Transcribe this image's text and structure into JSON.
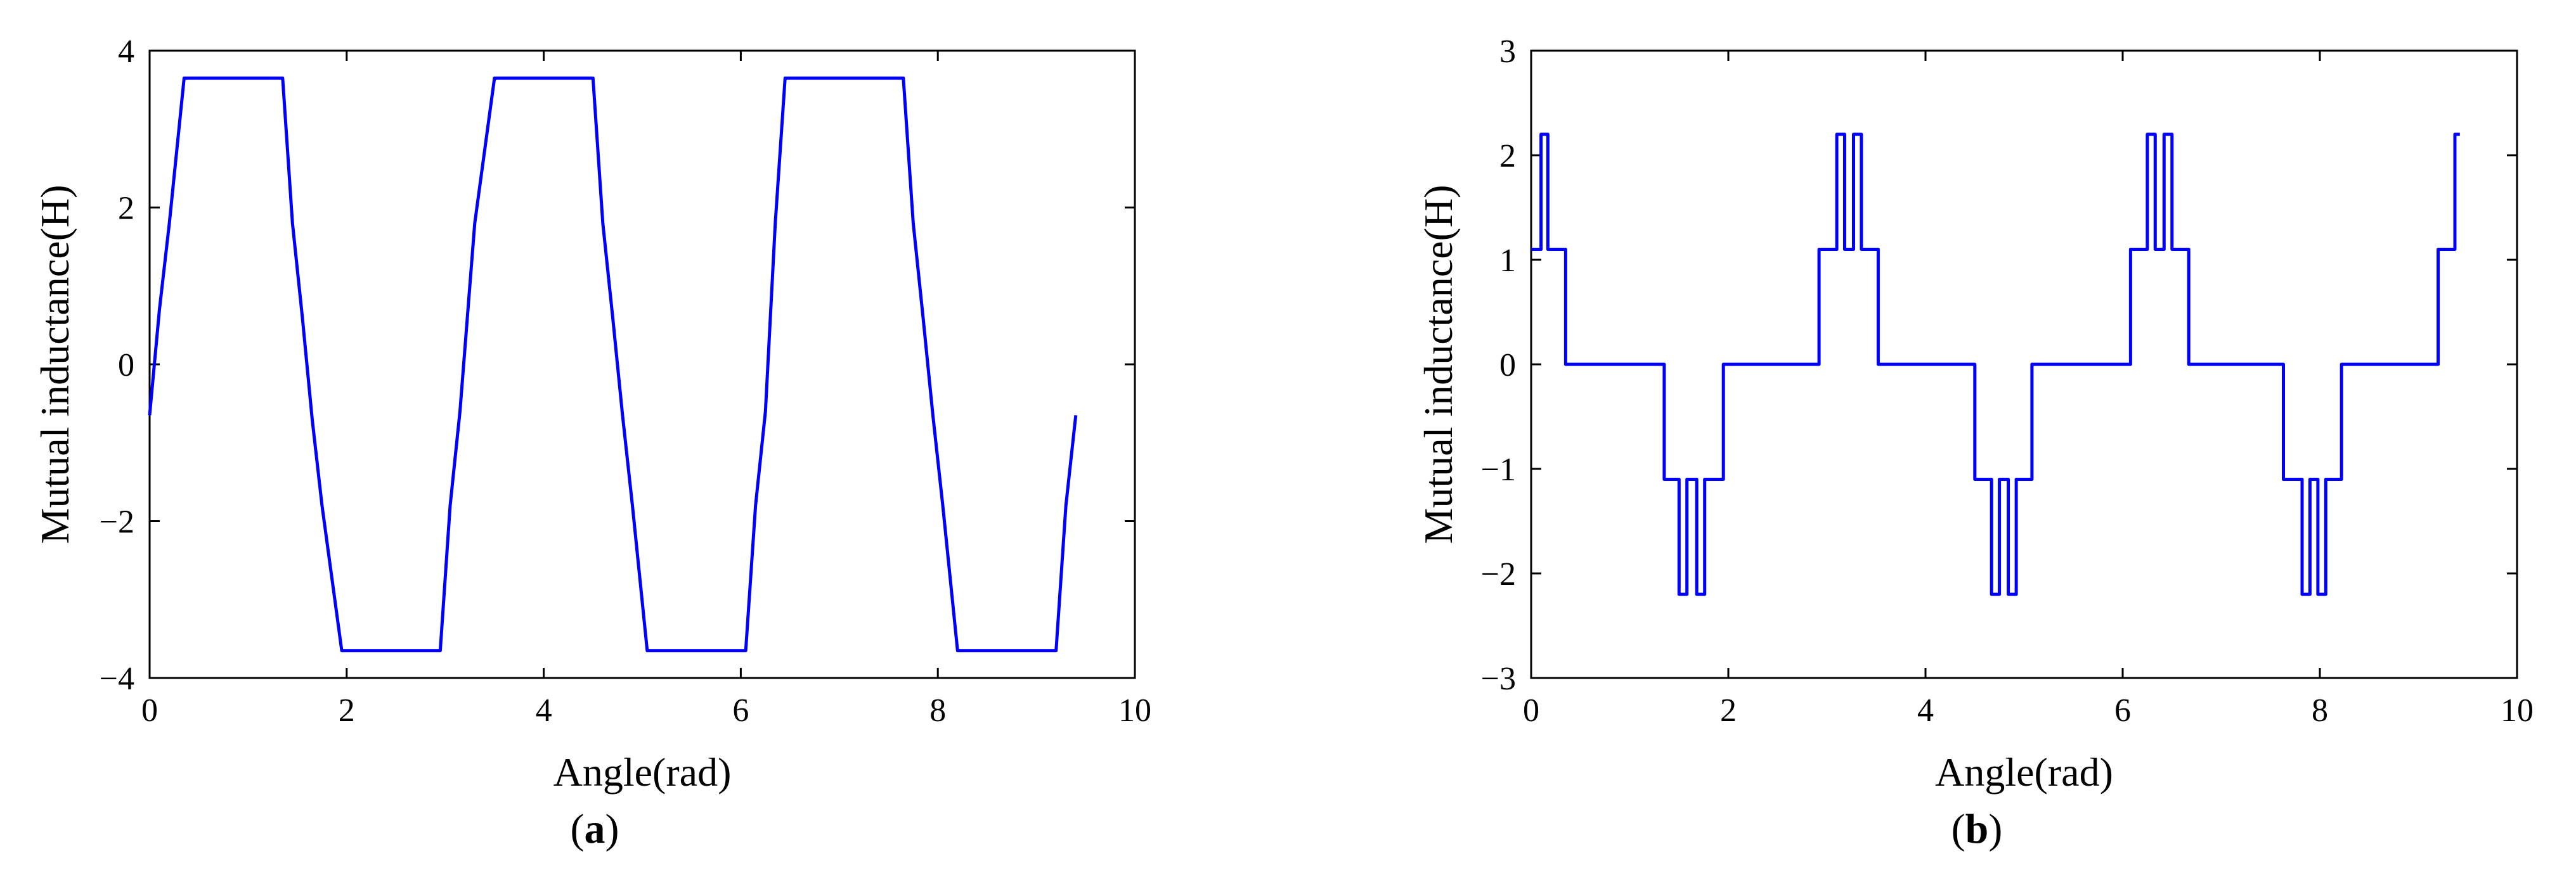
{
  "chart_data": [
    {
      "type": "line",
      "caption": {
        "open": "(",
        "letter": "a",
        "close": ")"
      },
      "title": "",
      "xlabel": "Angle(rad)",
      "ylabel": "Mutual inductance(H)",
      "xlim": [
        0,
        10
      ],
      "ylim": [
        -4,
        4
      ],
      "xticks": [
        0,
        2,
        4,
        6,
        8,
        10
      ],
      "xtick_labels": [
        "0",
        "2",
        "4",
        "6",
        "8",
        "10"
      ],
      "yticks": [
        -4,
        -2,
        0,
        2,
        4
      ],
      "ytick_labels": [
        "−4",
        "−2",
        "0",
        "2",
        "4"
      ],
      "grid": false,
      "series": [
        {
          "color": "#0000ff",
          "x": [
            0,
            0.1,
            0.2,
            0.35,
            1.35,
            1.45,
            1.55,
            1.65,
            1.75,
            1.95,
            2.95,
            3.05,
            3.15,
            3.3,
            3.5,
            4.5,
            4.6,
            4.7,
            4.8,
            4.9,
            5.05,
            6.05,
            6.15,
            6.25,
            6.35,
            6.45,
            6.65,
            7.65,
            7.75,
            7.85,
            7.95,
            8.05,
            8.2,
            9.2,
            9.3,
            9.4
          ],
          "y": [
            -0.65,
            0.7,
            1.8,
            3.65,
            3.65,
            1.8,
            0.6,
            -0.7,
            -1.8,
            -3.65,
            -3.65,
            -1.8,
            -0.6,
            1.8,
            3.65,
            3.65,
            1.8,
            0.6,
            -0.65,
            -1.8,
            -3.65,
            -3.65,
            -1.8,
            -0.6,
            1.8,
            3.65,
            3.65,
            3.65,
            1.8,
            0.6,
            -0.65,
            -1.8,
            -3.65,
            -3.65,
            -1.8,
            -0.65
          ]
        }
      ]
    },
    {
      "type": "line",
      "caption": {
        "open": "(",
        "letter": "b",
        "close": ")"
      },
      "title": "",
      "xlabel": "Angle(rad)",
      "ylabel": "Mutual inductance(H)",
      "xlim": [
        0,
        10
      ],
      "ylim": [
        -3,
        3
      ],
      "xticks": [
        0,
        2,
        4,
        6,
        8,
        10
      ],
      "xtick_labels": [
        "0",
        "2",
        "4",
        "6",
        "8",
        "10"
      ],
      "yticks": [
        -3,
        -2,
        -1,
        0,
        1,
        2,
        3
      ],
      "ytick_labels": [
        "−3",
        "−2",
        "−1",
        "0",
        "1",
        "2",
        "3"
      ],
      "grid": false,
      "series": [
        {
          "color": "#0000ff",
          "x": [
            0,
            0.1,
            0.1,
            0.17,
            0.17,
            0.35,
            0.35,
            1.35,
            1.35,
            1.5,
            1.5,
            1.58,
            1.58,
            1.68,
            1.68,
            1.76,
            1.76,
            1.95,
            1.95,
            2.92,
            2.92,
            3.1,
            3.1,
            3.18,
            3.18,
            3.27,
            3.27,
            3.35,
            3.35,
            3.52,
            3.52,
            4.5,
            4.5,
            4.67,
            4.67,
            4.75,
            4.75,
            4.84,
            4.84,
            4.92,
            4.92,
            5.08,
            5.08,
            6.08,
            6.08,
            6.25,
            6.25,
            6.33,
            6.33,
            6.42,
            6.42,
            6.5,
            6.5,
            6.67,
            6.67,
            7.63,
            7.63,
            7.82,
            7.82,
            7.9,
            7.9,
            7.98,
            7.98,
            8.06,
            8.06,
            8.22,
            8.22,
            9.2,
            9.2,
            9.37,
            9.37,
            9.42
          ],
          "y": [
            1.1,
            1.1,
            2.2,
            2.2,
            1.1,
            1.1,
            0,
            0,
            -1.1,
            -1.1,
            -2.2,
            -2.2,
            -1.1,
            -1.1,
            -2.2,
            -2.2,
            -1.1,
            -1.1,
            0,
            0,
            1.1,
            1.1,
            2.2,
            2.2,
            1.1,
            1.1,
            2.2,
            2.2,
            1.1,
            1.1,
            0,
            0,
            -1.1,
            -1.1,
            -2.2,
            -2.2,
            -1.1,
            -1.1,
            -2.2,
            -2.2,
            -1.1,
            -1.1,
            0,
            0,
            1.1,
            1.1,
            2.2,
            2.2,
            1.1,
            1.1,
            2.2,
            2.2,
            1.1,
            1.1,
            0,
            0,
            -1.1,
            -1.1,
            -2.2,
            -2.2,
            -1.1,
            -1.1,
            -2.2,
            -2.2,
            -1.1,
            -1.1,
            0,
            0,
            1.1,
            1.1,
            2.2,
            2.2
          ]
        }
      ]
    }
  ]
}
